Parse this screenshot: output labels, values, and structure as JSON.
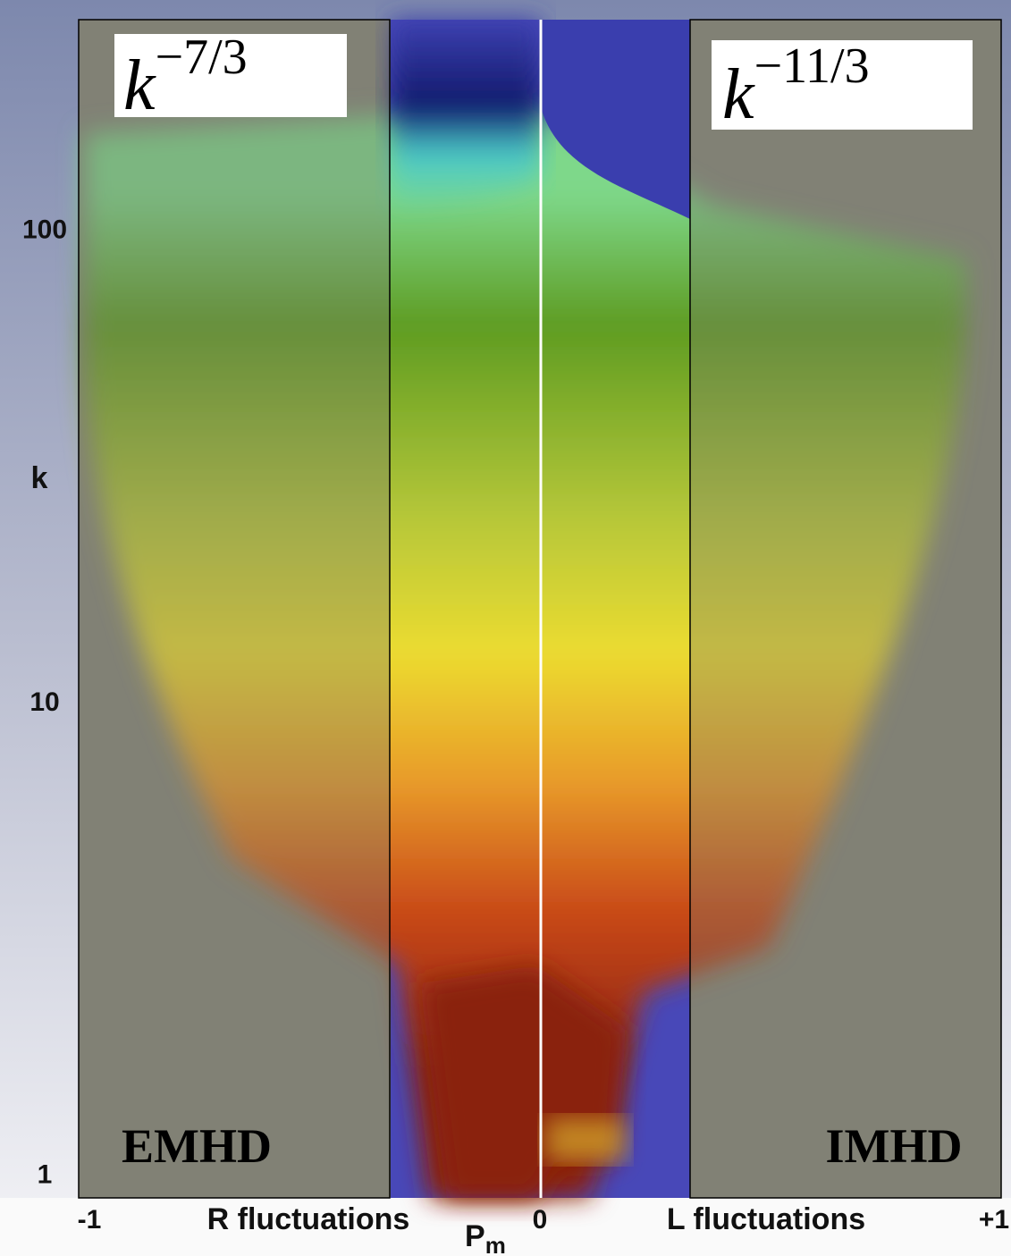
{
  "chart_data": {
    "type": "spectrogram",
    "x_label": {
      "base": "P",
      "subscript": "m"
    },
    "y_label": "k",
    "x_side_labels": [
      "R fluctuations",
      "L fluctuations"
    ],
    "xlim": [
      -1,
      1
    ],
    "xticks": [
      -1,
      0,
      {
        "value": 1,
        "label": "+1"
      }
    ],
    "ylim": [
      0.9,
      280
    ],
    "yticks": [
      1,
      10,
      100
    ],
    "log_y": true,
    "annotations": [
      {
        "base": "k",
        "exponent": "−7/3",
        "model": "EMHD"
      },
      {
        "base": "k",
        "exponent": "−11/3",
        "model": "IMHD"
      }
    ]
  }
}
